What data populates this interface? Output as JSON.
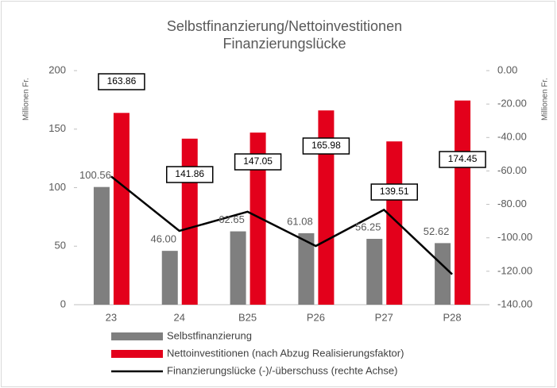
{
  "chart_data": {
    "type": "bar",
    "title": "Selbstfinanzierung/Nettoinvestitionen",
    "subtitle": "Finanzierungslücke",
    "y_label": "Millionen Fr.",
    "y2_label": "Millionen Fr.",
    "categories": [
      "23",
      "24",
      "B25",
      "P26",
      "P27",
      "P28"
    ],
    "series": [
      {
        "name": "Selbstfinanzierung",
        "color": "#7f7f7f",
        "values": [
          100.56,
          46.0,
          62.65,
          61.08,
          56.25,
          52.62
        ],
        "value_labels": [
          "100.56",
          "46.00",
          "62.65",
          "61.08",
          "56.25",
          "52.62"
        ]
      },
      {
        "name": "Nettoinvestitionen (nach Abzug Realisierungsfaktor)",
        "color": "#e3001b",
        "values": [
          163.86,
          141.86,
          147.05,
          165.98,
          139.51,
          174.45
        ]
      },
      {
        "name": "Finanzierungslücke (-)/-überschuss (rechte Achse)",
        "color": "#000000",
        "type": "line",
        "axis": "y2",
        "values": [
          -63.3,
          -95.86,
          -84.4,
          -104.9,
          -83.26,
          -121.83
        ]
      }
    ],
    "ylim": [
      0,
      200
    ],
    "yticks": [
      0,
      50,
      100,
      150,
      200
    ],
    "y2lim": [
      -140,
      0
    ],
    "y2ticks": [
      {
        "value": 0,
        "label": "0.00"
      },
      {
        "value": -20,
        "label": "-20.00"
      },
      {
        "value": -40,
        "label": "-40.00"
      },
      {
        "value": -60,
        "label": "-60.00"
      },
      {
        "value": -80,
        "label": "-80.00"
      },
      {
        "value": -100,
        "label": "-100.00"
      },
      {
        "value": -120,
        "label": "-120.00"
      },
      {
        "value": -140,
        "label": "-140.00"
      }
    ],
    "legend": "bottom"
  }
}
